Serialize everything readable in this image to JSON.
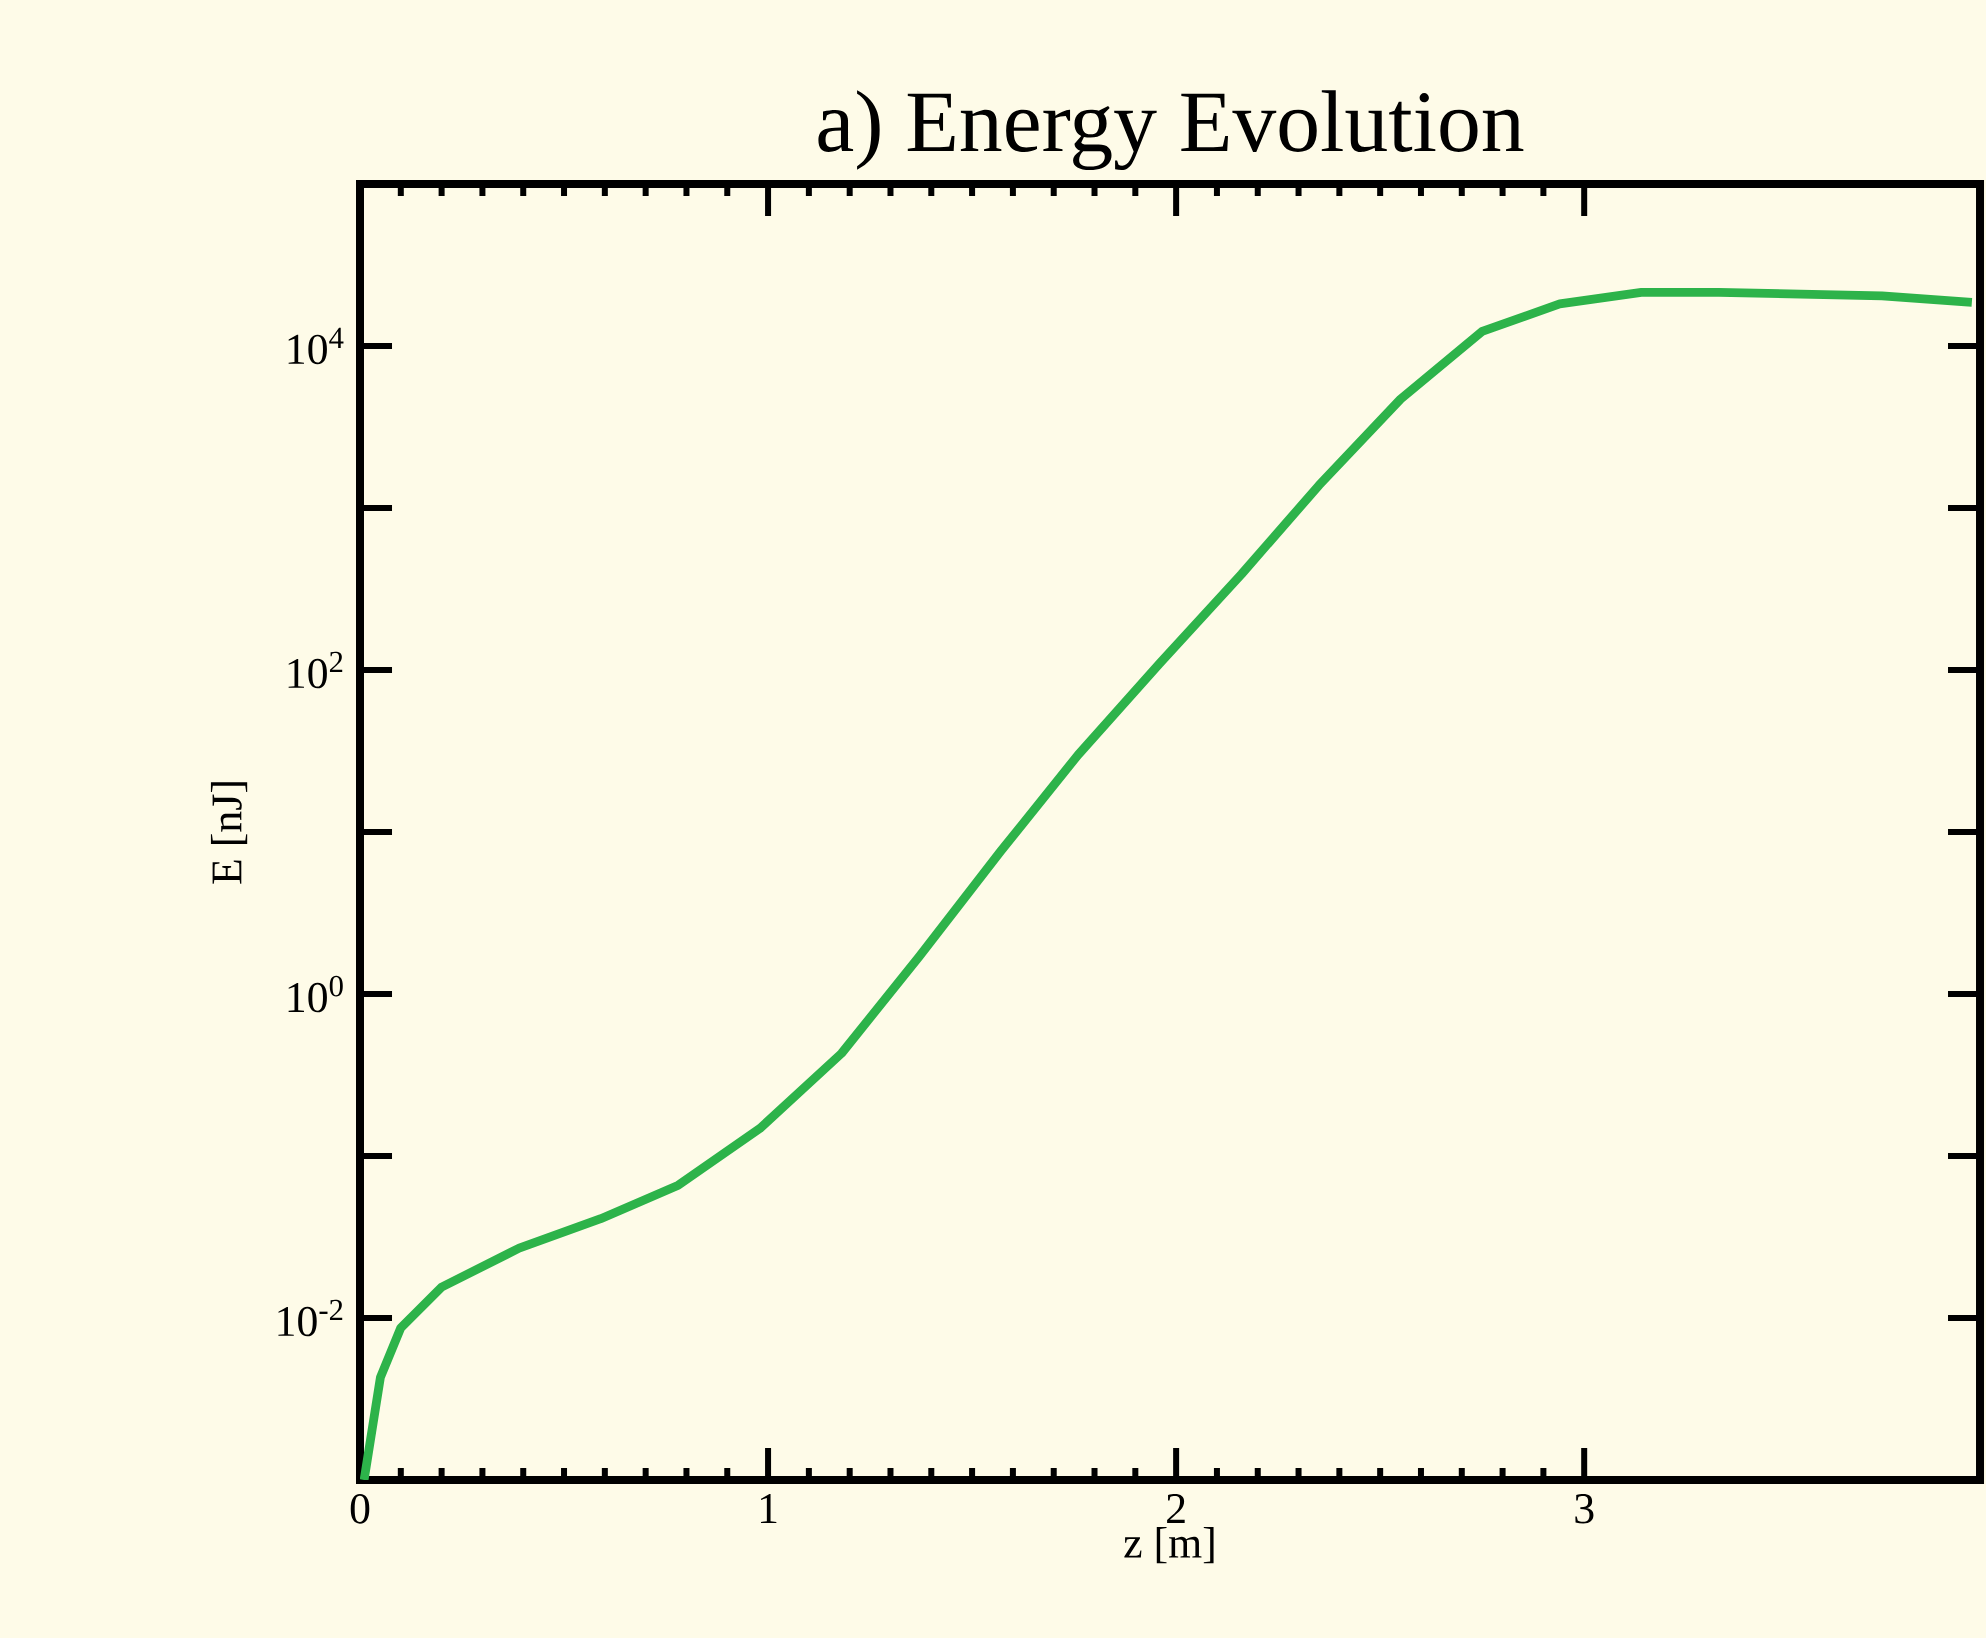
{
  "chart_data": {
    "type": "line",
    "title": "a) Energy Evolution",
    "xlabel": "z [m]",
    "ylabel": "E [nJ]",
    "log": "y",
    "x": [
      0.01,
      0.05,
      0.1,
      0.2,
      0.39,
      0.59,
      0.78,
      0.98,
      1.18,
      1.37,
      1.57,
      1.76,
      1.96,
      2.16,
      2.35,
      2.55,
      2.75,
      2.94,
      3.14,
      3.33,
      3.53,
      3.73,
      3.95
    ],
    "series": [
      {
        "color": "#2db34a",
        "values": [
          0.001,
          0.0043,
          0.0087,
          0.0155,
          0.027,
          0.041,
          0.066,
          0.148,
          0.43,
          1.7,
          7.6,
          30,
          110,
          390,
          1380,
          4700,
          12300,
          18200,
          21400,
          21400,
          20900,
          20400,
          18600
        ]
      }
    ],
    "xlim": [
      0,
      3.97
    ],
    "ylim": [
      0.001,
      100000
    ],
    "xticks": [
      0,
      1,
      2,
      3
    ],
    "yticks": [
      {
        "value": 0.01,
        "label": "10$^{-2}$"
      },
      {
        "value": 0.1,
        "label": null
      },
      {
        "value": 1,
        "label": "10$^{0}$"
      },
      {
        "value": 10,
        "label": null
      },
      {
        "value": 100,
        "label": "10$^{2}$"
      },
      {
        "value": 1000,
        "label": null
      },
      {
        "value": 10000,
        "label": "10$^{4}$"
      }
    ]
  }
}
